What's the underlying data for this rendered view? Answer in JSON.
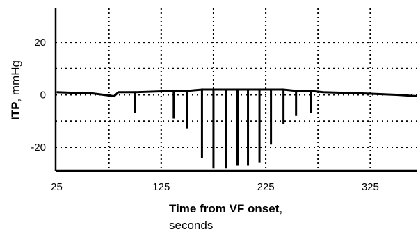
{
  "chart_data": {
    "type": "line",
    "ylabel_bold": "ITP",
    "ylabel_rest": ", mmHg",
    "xlabel_bold": "Time from VF onset",
    "xlabel_rest": ",",
    "xlabel_line2": "seconds",
    "x": [
      25,
      60,
      80,
      84,
      86,
      100,
      100,
      100,
      137,
      137,
      137,
      150,
      150,
      150,
      164,
      164,
      164,
      175,
      175,
      175,
      187,
      187,
      187,
      198,
      198,
      198,
      208,
      208,
      208,
      219,
      219,
      219,
      230,
      230,
      230,
      242,
      242,
      242,
      254,
      254,
      254,
      268,
      268,
      268,
      280,
      320,
      350,
      370
    ],
    "series": [
      {
        "color": "#000000",
        "values": [
          1,
          0.5,
          -0.5,
          1,
          1,
          1,
          -7,
          1,
          1.5,
          -9,
          1.5,
          1.5,
          -13,
          1.5,
          2,
          -24,
          2,
          2,
          -28,
          2,
          2,
          -28,
          2,
          2,
          -27,
          2,
          2,
          -27,
          2,
          2,
          -26,
          2,
          2,
          -19,
          2,
          2,
          -11,
          2,
          1.5,
          -8,
          1.5,
          1.5,
          -7,
          1.5,
          1,
          0.5,
          0,
          -0.5
        ]
      }
    ],
    "xlim": [
      24,
      370
    ],
    "ylim": [
      -29,
      33
    ],
    "xticks": [
      25,
      125,
      225,
      325
    ],
    "yticks": [
      -20,
      0,
      20
    ],
    "xgrid": [
      75,
      125,
      175,
      225,
      275,
      325
    ],
    "ygrid": [
      -20,
      -10,
      0,
      10,
      20
    ],
    "grid": true
  }
}
